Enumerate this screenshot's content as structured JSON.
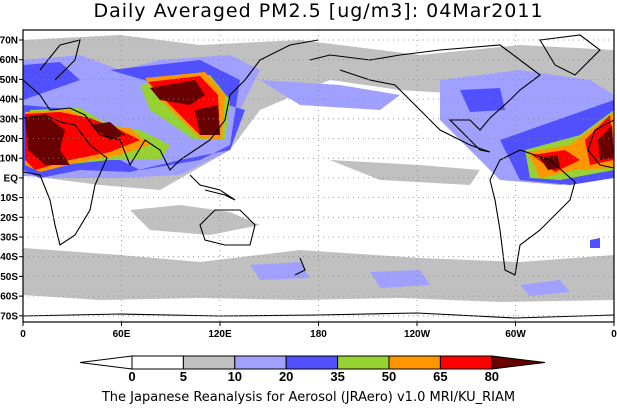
{
  "title": "Daily Averaged PM2.5 [ug/m3]: 04Mar2011",
  "lat_labels": [
    "70N",
    "60N",
    "50N",
    "40N",
    "30N",
    "20N",
    "10N",
    "EQ",
    "10S",
    "20S",
    "30S",
    "40S",
    "50S",
    "60S",
    "70S"
  ],
  "lon_labels": [
    "0",
    "60E",
    "120E",
    "180",
    "120W",
    "60W",
    "0"
  ],
  "colorbar": {
    "levels": [
      "0",
      "5",
      "10",
      "20",
      "35",
      "50",
      "65",
      "80"
    ],
    "colors": [
      "#ffffff",
      "#ffffff",
      "#c0c0c0",
      "#a0a0ff",
      "#5050ff",
      "#96d232",
      "#ff9600",
      "#ff0000",
      "#690000"
    ]
  },
  "credit": "The Japanese Reanalysis for Aerosol (JRAero) v1.0 MRI/KU_RIAM"
}
